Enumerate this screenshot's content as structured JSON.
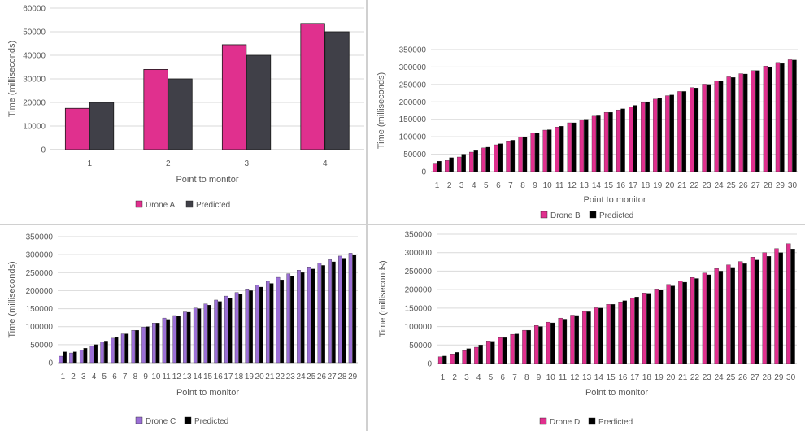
{
  "chart_data": [
    {
      "id": "A",
      "type": "bar",
      "categories": [
        "1",
        "2",
        "3",
        "4"
      ],
      "series": [
        {
          "name": "Drone A",
          "color": "#e0308e",
          "values": [
            17500,
            34000,
            44500,
            53500
          ]
        },
        {
          "name": "Predicted",
          "color": "#404048",
          "values": [
            20000,
            30000,
            40000,
            50000
          ]
        }
      ],
      "ylim": [
        0,
        60000
      ],
      "yticks": [
        0,
        10000,
        20000,
        30000,
        40000,
        50000,
        60000
      ],
      "xlabel": "Point to monitor",
      "ylabel": "Time (milliseconds)",
      "grid": true,
      "legend": "bottom"
    },
    {
      "id": "B",
      "type": "bar",
      "categories": [
        "1",
        "2",
        "3",
        "4",
        "5",
        "6",
        "7",
        "8",
        "9",
        "10",
        "11",
        "12",
        "13",
        "14",
        "15",
        "16",
        "17",
        "18",
        "19",
        "20",
        "21",
        "22",
        "23",
        "24",
        "25",
        "26",
        "27",
        "28",
        "29",
        "30"
      ],
      "series": [
        {
          "name": "Drone B",
          "color": "#e0308e",
          "values": [
            22000,
            32000,
            42000,
            56000,
            68000,
            77000,
            86000,
            99000,
            110000,
            119000,
            128000,
            140000,
            148000,
            159000,
            170000,
            177000,
            186000,
            198000,
            208000,
            218000,
            230000,
            241000,
            251000,
            261000,
            272000,
            281000,
            290000,
            303000,
            313000,
            321000
          ]
        },
        {
          "name": "Predicted",
          "color": "#000000",
          "values": [
            30000,
            40000,
            50000,
            60000,
            70000,
            80000,
            90000,
            100000,
            110000,
            120000,
            130000,
            140000,
            150000,
            160000,
            170000,
            180000,
            190000,
            200000,
            210000,
            220000,
            230000,
            240000,
            250000,
            260000,
            270000,
            280000,
            290000,
            300000,
            310000,
            320000
          ]
        }
      ],
      "ylim": [
        0,
        350000
      ],
      "yticks": [
        0,
        50000,
        100000,
        150000,
        200000,
        250000,
        300000,
        350000
      ],
      "xlabel": "Point to monitor",
      "ylabel": "Time (milliseconds)",
      "grid": true,
      "legend": "bottom"
    },
    {
      "id": "C",
      "type": "bar",
      "categories": [
        "1",
        "2",
        "3",
        "4",
        "5",
        "6",
        "7",
        "8",
        "9",
        "10",
        "11",
        "12",
        "13",
        "14",
        "15",
        "16",
        "17",
        "18",
        "19",
        "20",
        "21",
        "22",
        "23",
        "24",
        "25",
        "26",
        "27",
        "28",
        "29"
      ],
      "series": [
        {
          "name": "Drone C",
          "color": "#9b6fd6",
          "values": [
            18000,
            27000,
            35000,
            46000,
            58000,
            68000,
            80000,
            90000,
            99000,
            110000,
            124000,
            131000,
            141000,
            152000,
            163000,
            174000,
            185000,
            195000,
            205000,
            216000,
            226000,
            237000,
            247000,
            257000,
            266000,
            276000,
            286000,
            296000,
            304000
          ]
        },
        {
          "name": "Predicted",
          "color": "#000000",
          "values": [
            30000,
            30000,
            40000,
            50000,
            60000,
            70000,
            80000,
            90000,
            100000,
            110000,
            120000,
            130000,
            140000,
            150000,
            160000,
            170000,
            180000,
            190000,
            200000,
            210000,
            220000,
            230000,
            240000,
            250000,
            260000,
            270000,
            280000,
            290000,
            300000
          ]
        }
      ],
      "ylim": [
        0,
        350000
      ],
      "yticks": [
        0,
        50000,
        100000,
        150000,
        200000,
        250000,
        300000,
        350000
      ],
      "xlabel": "Point to monitor",
      "ylabel": "Time (milliseconds)",
      "grid": true,
      "legend": "bottom"
    },
    {
      "id": "D",
      "type": "bar",
      "categories": [
        "1",
        "2",
        "3",
        "4",
        "5",
        "6",
        "7",
        "8",
        "9",
        "10",
        "11",
        "12",
        "13",
        "14",
        "15",
        "16",
        "17",
        "18",
        "19",
        "20",
        "21",
        "22",
        "23",
        "24",
        "25",
        "26",
        "27",
        "28",
        "29",
        "30"
      ],
      "series": [
        {
          "name": "Drone D",
          "color": "#e0308e",
          "values": [
            18000,
            26000,
            35000,
            44000,
            61000,
            70000,
            79000,
            90000,
            103000,
            112000,
            123000,
            131000,
            141000,
            151000,
            160000,
            167000,
            178000,
            191000,
            202000,
            214000,
            224000,
            233000,
            245000,
            257000,
            267000,
            276000,
            288000,
            300000,
            311000,
            324000
          ]
        },
        {
          "name": "Predicted",
          "color": "#000000",
          "values": [
            20000,
            30000,
            40000,
            50000,
            60000,
            70000,
            80000,
            90000,
            100000,
            110000,
            120000,
            130000,
            140000,
            150000,
            160000,
            170000,
            180000,
            190000,
            200000,
            210000,
            220000,
            230000,
            240000,
            250000,
            260000,
            270000,
            280000,
            290000,
            300000,
            310000
          ]
        }
      ],
      "ylim": [
        0,
        350000
      ],
      "yticks": [
        0,
        50000,
        100000,
        150000,
        200000,
        250000,
        300000,
        350000
      ],
      "xlabel": "Point to monitor",
      "ylabel": "Time (milliseconds)",
      "grid": true,
      "legend": "bottom"
    }
  ]
}
